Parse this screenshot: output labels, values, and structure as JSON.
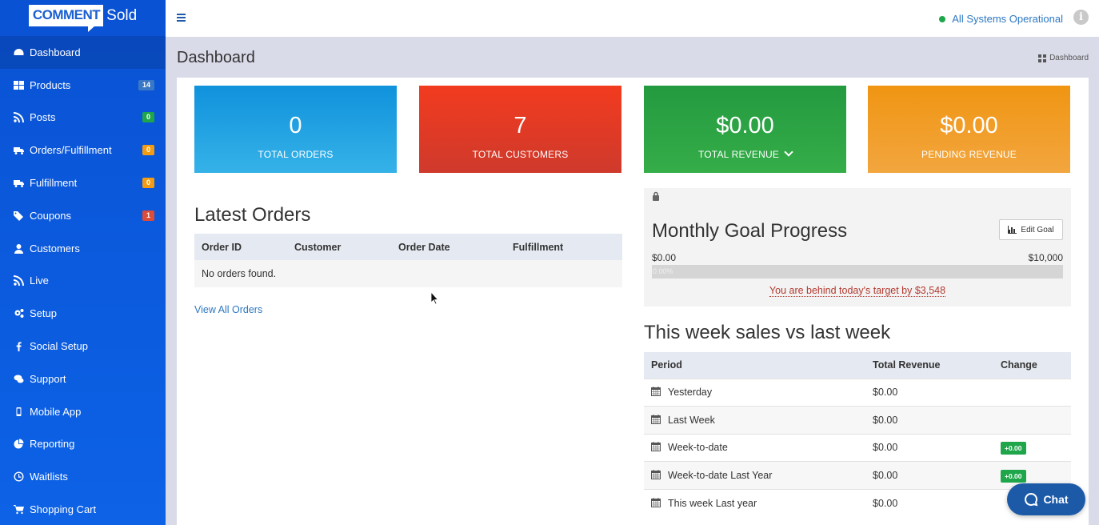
{
  "brand": {
    "logo_word1": "COMMENT",
    "logo_word2": "Sold"
  },
  "sidebar": {
    "items": [
      {
        "label": "Dashboard",
        "icon": "dashboard-icon",
        "active": true
      },
      {
        "label": "Products",
        "icon": "grid-icon",
        "badge": "14",
        "badge_color": "#3a78c5"
      },
      {
        "label": "Posts",
        "icon": "rss-icon",
        "badge": "0",
        "badge_color": "#1fa64b"
      },
      {
        "label": "Orders/Fulfillment",
        "icon": "truck-icon",
        "badge": "0",
        "badge_color": "#f39c12"
      },
      {
        "label": "Fulfillment",
        "icon": "truck-icon",
        "badge": "0",
        "badge_color": "#f39c12"
      },
      {
        "label": "Coupons",
        "icon": "tags-icon",
        "badge": "1",
        "badge_color": "#dd4b39"
      },
      {
        "label": "Customers",
        "icon": "user-icon"
      },
      {
        "label": "Live",
        "icon": "rss-icon"
      },
      {
        "label": "Setup",
        "icon": "gears-icon"
      },
      {
        "label": "Social Setup",
        "icon": "facebook-icon"
      },
      {
        "label": "Support",
        "icon": "comments-icon"
      },
      {
        "label": "Mobile App",
        "icon": "mobile-icon"
      },
      {
        "label": "Reporting",
        "icon": "pie-chart-icon"
      },
      {
        "label": "Waitlists",
        "icon": "clock-icon"
      },
      {
        "label": "Shopping Cart",
        "icon": "cart-icon"
      }
    ]
  },
  "header": {
    "status": "All Systems Operational",
    "status_color": "#1fa64b"
  },
  "page": {
    "title": "Dashboard",
    "breadcrumb": "Dashboard"
  },
  "stats": [
    {
      "value": "0",
      "label": "TOTAL ORDERS"
    },
    {
      "value": "7",
      "label": "TOTAL CUSTOMERS"
    },
    {
      "value": "$0.00",
      "label": "TOTAL REVENUE"
    },
    {
      "value": "$0.00",
      "label": "PENDING REVENUE"
    }
  ],
  "latest_orders": {
    "title": "Latest Orders",
    "columns": [
      "Order ID",
      "Customer",
      "Order Date",
      "Fulfillment"
    ],
    "empty_text": "No orders found.",
    "view_all": "View All Orders"
  },
  "goal": {
    "title": "Monthly Goal Progress",
    "edit_label": "Edit Goal",
    "min": "$0.00",
    "max": "$10,000",
    "progress_text": "0.00%",
    "progress_fraction": 0.0,
    "behind_text": "You are behind today's target by $3,548"
  },
  "week_sales": {
    "title": "This week sales vs last week",
    "columns": [
      "Period",
      "Total Revenue",
      "Change"
    ],
    "rows": [
      {
        "period": "Yesterday",
        "revenue": "$0.00",
        "change": ""
      },
      {
        "period": "Last Week",
        "revenue": "$0.00",
        "change": ""
      },
      {
        "period": "Week-to-date",
        "revenue": "$0.00",
        "change": "+0.00"
      },
      {
        "period": "Week-to-date Last Year",
        "revenue": "$0.00",
        "change": "+0.00"
      },
      {
        "period": "This week Last year",
        "revenue": "$0.00",
        "change": ""
      }
    ]
  },
  "chat": {
    "label": "Chat"
  }
}
